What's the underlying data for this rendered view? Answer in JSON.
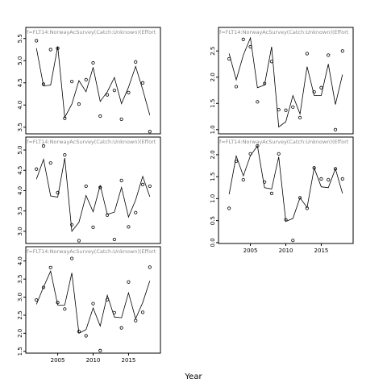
{
  "xlabel": "Year",
  "chart_data": [
    {
      "type": "line",
      "title": "f=FLT14:NorwayAcSurvey(Catch:Unknown)(Effort",
      "x": [
        2002,
        2003,
        2004,
        2005,
        2006,
        2007,
        2008,
        2009,
        2010,
        2011,
        2012,
        2013,
        2014,
        2015,
        2016,
        2017,
        2018
      ],
      "series": [
        {
          "values": [
            5.28,
            4.43,
            4.45,
            5.32,
            3.72,
            4.02,
            4.55,
            4.3,
            4.85,
            4.08,
            4.3,
            4.62,
            4.03,
            4.4,
            4.87,
            4.35,
            3.77
          ]
        },
        {
          "values": [
            5.45,
            4.47,
            5.25,
            5.28,
            3.7,
            4.53,
            4.02,
            4.57,
            4.95,
            3.75,
            4.23,
            4.33,
            3.68,
            4.28,
            4.97,
            4.5,
            3.4
          ]
        }
      ],
      "ylim": [
        3.35,
        5.55
      ],
      "yticks": [
        3.5,
        4.0,
        4.5,
        5.0,
        5.5
      ],
      "ytick_labels": [
        "3.5",
        "4.0",
        "4.5",
        "5.0",
        "5.5"
      ],
      "xlim": [
        2000.5,
        2019.5
      ],
      "xticks": [],
      "xtick_labels": []
    },
    {
      "type": "line",
      "title": "f=FLT14:NorwayAcSurvey(Catch:Unknown)(Effort",
      "x": [
        2002,
        2003,
        2004,
        2005,
        2006,
        2007,
        2008,
        2009,
        2010,
        2011,
        2012,
        2013,
        2014,
        2015,
        2016,
        2017,
        2018
      ],
      "series": [
        {
          "values": [
            2.45,
            1.95,
            2.42,
            2.75,
            1.8,
            1.85,
            2.58,
            1.05,
            1.15,
            1.65,
            1.3,
            2.2,
            1.65,
            1.65,
            2.25,
            1.48,
            2.05
          ]
        },
        {
          "values": [
            2.35,
            1.82,
            2.72,
            2.58,
            1.53,
            1.88,
            2.3,
            1.38,
            1.37,
            1.43,
            1.23,
            2.45,
            1.72,
            1.8,
            2.42,
            1.0,
            2.5
          ]
        }
      ],
      "ylim": [
        0.92,
        2.78
      ],
      "yticks": [
        1.0,
        1.5,
        2.0,
        2.5
      ],
      "ytick_labels": [
        "1.0",
        "1.5",
        "2.0",
        "2.5"
      ],
      "xlim": [
        2000.5,
        2019.5
      ],
      "xticks": [],
      "xtick_labels": []
    },
    {
      "type": "line",
      "title": "f=FLT14:NorwayAcSurvey(Catch:Unknown)(Effort",
      "x": [
        2002,
        2003,
        2004,
        2005,
        2006,
        2007,
        2008,
        2009,
        2010,
        2011,
        2012,
        2013,
        2014,
        2015,
        2016,
        2017,
        2018
      ],
      "series": [
        {
          "values": [
            4.28,
            4.77,
            3.87,
            3.84,
            4.8,
            3.0,
            3.22,
            3.88,
            3.48,
            4.13,
            3.42,
            3.47,
            4.08,
            3.35,
            3.77,
            4.35,
            3.85
          ]
        },
        {
          "values": [
            4.53,
            5.1,
            4.68,
            3.95,
            4.88,
            3.16,
            2.77,
            4.11,
            3.1,
            4.08,
            3.4,
            2.8,
            4.25,
            3.11,
            3.46,
            4.15,
            4.11
          ]
        }
      ],
      "ylim": [
        2.7,
        5.1
      ],
      "yticks": [
        3.0,
        3.5,
        4.0,
        4.5,
        5.0
      ],
      "ytick_labels": [
        "3.0",
        "3.5",
        "4.0",
        "4.5",
        "5.0"
      ],
      "xlim": [
        2000.5,
        2019.5
      ],
      "xticks": [],
      "xtick_labels": []
    },
    {
      "type": "line",
      "title": "f=FLT14:NorwayAcSurvey(Catch:Unknown)(Effort",
      "x": [
        2002,
        2003,
        2004,
        2005,
        2006,
        2007,
        2008,
        2009,
        2010,
        2011,
        2012,
        2013,
        2014,
        2015,
        2016,
        2017,
        2018
      ],
      "series": [
        {
          "values": [
            1.1,
            1.97,
            1.52,
            1.98,
            2.2,
            1.25,
            1.22,
            1.95,
            0.48,
            0.55,
            1.02,
            0.8,
            1.7,
            1.27,
            1.25,
            1.68,
            1.12
          ]
        },
        {
          "values": [
            0.78,
            1.85,
            1.43,
            2.02,
            2.2,
            1.38,
            1.12,
            2.02,
            0.52,
            0.05,
            1.02,
            0.78,
            1.7,
            1.45,
            1.43,
            1.68,
            1.45
          ]
        }
      ],
      "ylim": [
        -0.02,
        2.2
      ],
      "yticks": [
        0.0,
        0.5,
        1.0,
        1.5,
        2.0
      ],
      "ytick_labels": [
        "0.0",
        "0.5",
        "1.0",
        "1.5",
        "2.0"
      ],
      "xlim": [
        2000.5,
        2019.5
      ],
      "xticks": [
        2005,
        2010,
        2015
      ],
      "xtick_labels": [
        "2005",
        "2010",
        "2015"
      ]
    },
    {
      "type": "line",
      "title": "f=FLT14:NorwayAcSurvey(Catch:Unknown)(Effort",
      "x": [
        2002,
        2003,
        2004,
        2005,
        2006,
        2007,
        2008,
        2009,
        2010,
        2011,
        2012,
        2013,
        2014,
        2015,
        2016,
        2017,
        2018
      ],
      "series": [
        {
          "values": [
            2.8,
            3.28,
            3.72,
            2.78,
            2.78,
            3.67,
            2.0,
            2.1,
            2.7,
            2.2,
            3.05,
            2.45,
            2.43,
            3.12,
            2.4,
            2.85,
            3.45
          ]
        },
        {
          "values": [
            2.92,
            3.27,
            3.82,
            2.85,
            2.67,
            4.07,
            2.05,
            1.93,
            2.82,
            1.52,
            2.93,
            2.57,
            2.15,
            3.42,
            2.35,
            2.58,
            3.83
          ]
        }
      ],
      "ylim": [
        1.45,
        4.15
      ],
      "yticks": [
        1.5,
        2.0,
        2.5,
        3.0,
        3.5,
        4.0
      ],
      "ytick_labels": [
        "1.5",
        "2.0",
        "2.5",
        "3.0",
        "3.5",
        "4.0"
      ],
      "xlim": [
        2000.5,
        2019.5
      ],
      "xticks": [
        2005,
        2010,
        2015
      ],
      "xtick_labels": [
        "2005",
        "2010",
        "2015"
      ]
    }
  ]
}
